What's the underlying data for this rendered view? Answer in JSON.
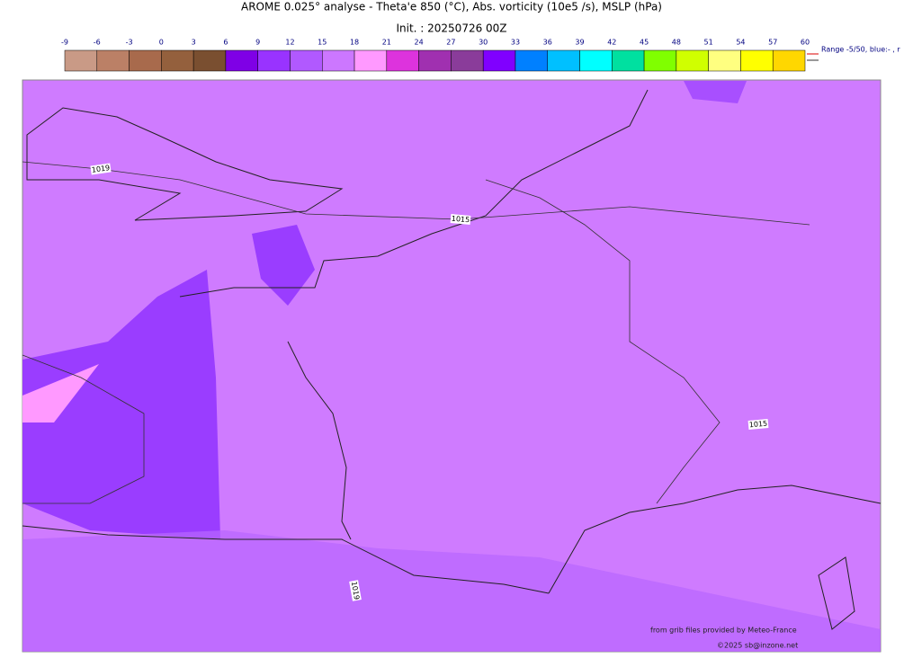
{
  "title": "AROME 0.025° analyse - Theta'e 850 (°C), Abs. vorticity (10e5 /s), MSLP (hPa)",
  "subtitle": "Init. : 20250726 00Z",
  "colorbar": {
    "ticks": [
      -9,
      -6,
      -3,
      0,
      3,
      6,
      9,
      12,
      15,
      18,
      21,
      24,
      27,
      30,
      33,
      36,
      39,
      42,
      45,
      48,
      51,
      54,
      57,
      60
    ],
    "colors": [
      "#c99a86",
      "#bb8066",
      "#a86a4c",
      "#94603d",
      "#7a4f30",
      "#7f00e6",
      "#9933ff",
      "#b159ff",
      "#cc77ff",
      "#ff99ff",
      "#dd33dd",
      "#a030b0",
      "#8a3c9a",
      "#8000ff",
      "#0080ff",
      "#00c0ff",
      "#00ffff",
      "#00e0a0",
      "#80ff00",
      "#d0ff00",
      "#ffff80",
      "#ffff00",
      "#ffd700"
    ]
  },
  "range_note": "Range -5/50, blue:- , r",
  "isobar_labels": [
    "1019",
    "1015",
    "1015",
    "1019"
  ],
  "credits": [
    "from grib files provided by Meteo-France",
    "©2025 sb@inzone.net"
  ]
}
